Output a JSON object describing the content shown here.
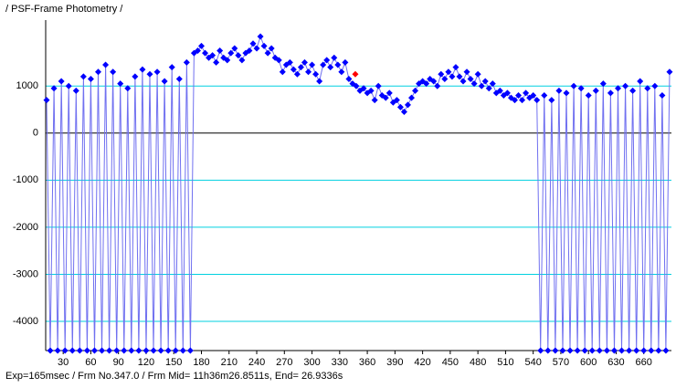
{
  "chart_data": {
    "type": "line",
    "title": "/ PSF-Frame Photometry /",
    "footer": "Exp=165msec / Frm No.347.0 / Frm Mid= 11h36m26.8511s,  End= 26.9336s",
    "xlim": [
      11,
      690
    ],
    "ylim": [
      -4620,
      2400
    ],
    "xticks": [
      30,
      60,
      90,
      120,
      150,
      180,
      210,
      240,
      270,
      300,
      330,
      360,
      390,
      420,
      450,
      480,
      510,
      540,
      570,
      600,
      630,
      660
    ],
    "yticks": [
      1000,
      0,
      -1000,
      -2000,
      -3000,
      -4000
    ],
    "grid": true,
    "grid_color": "#00d0e0",
    "zero_line_color": "#000000",
    "series": [
      {
        "color": "#0000ff",
        "line_color": "#7070f0",
        "x": [
          12,
          16,
          20,
          24,
          28,
          32,
          36,
          40,
          44,
          48,
          52,
          56,
          60,
          64,
          68,
          72,
          76,
          80,
          84,
          88,
          92,
          96,
          100,
          104,
          108,
          112,
          116,
          120,
          124,
          128,
          132,
          136,
          140,
          144,
          148,
          152,
          156,
          160,
          164,
          168,
          172,
          176,
          180,
          184,
          188,
          192,
          196,
          200,
          204,
          208,
          212,
          216,
          220,
          224,
          228,
          232,
          236,
          240,
          244,
          248,
          252,
          256,
          260,
          264,
          268,
          272,
          276,
          280,
          284,
          288,
          292,
          296,
          300,
          304,
          308,
          312,
          316,
          320,
          324,
          328,
          332,
          336,
          340,
          344,
          348,
          352,
          356,
          360,
          364,
          368,
          372,
          376,
          380,
          384,
          388,
          392,
          396,
          400,
          404,
          408,
          412,
          416,
          420,
          424,
          428,
          432,
          436,
          440,
          444,
          448,
          452,
          456,
          460,
          464,
          468,
          472,
          476,
          480,
          484,
          488,
          492,
          496,
          500,
          504,
          508,
          512,
          516,
          520,
          524,
          528,
          532,
          536,
          540,
          544,
          548,
          552,
          556,
          560,
          564,
          568,
          572,
          576,
          580,
          584,
          588,
          592,
          596,
          600,
          604,
          608,
          612,
          616,
          620,
          624,
          628,
          632,
          636,
          640,
          644,
          648,
          652,
          656,
          660,
          664,
          668,
          672,
          676,
          680,
          684,
          688
        ],
        "values": [
          700,
          -4620,
          950,
          -4620,
          1100,
          -4620,
          1000,
          -4620,
          900,
          -4620,
          1200,
          -4620,
          1150,
          -4620,
          1300,
          -4620,
          1450,
          -4620,
          1300,
          -4620,
          1050,
          -4620,
          950,
          -4620,
          1200,
          -4620,
          1350,
          -4620,
          1250,
          -4620,
          1300,
          -4620,
          1100,
          -4620,
          1400,
          -4620,
          1150,
          -4620,
          1500,
          -4620,
          1700,
          1750,
          1850,
          1700,
          1600,
          1650,
          1500,
          1750,
          1600,
          1550,
          1700,
          1800,
          1650,
          1550,
          1700,
          1750,
          1900,
          1800,
          2050,
          1850,
          1700,
          1800,
          1600,
          1550,
          1300,
          1450,
          1500,
          1350,
          1250,
          1400,
          1500,
          1300,
          1450,
          1250,
          1100,
          1450,
          1550,
          1400,
          1600,
          1450,
          1300,
          1500,
          1150,
          1050,
          1000,
          900,
          950,
          850,
          900,
          700,
          1000,
          800,
          750,
          850,
          650,
          700,
          550,
          450,
          600,
          750,
          900,
          1050,
          1100,
          1050,
          1150,
          1100,
          1000,
          1250,
          1150,
          1300,
          1200,
          1400,
          1200,
          1100,
          1300,
          1150,
          1050,
          1250,
          1000,
          1100,
          950,
          1050,
          850,
          900,
          800,
          850,
          750,
          700,
          800,
          700,
          850,
          750,
          800,
          700,
          -4620,
          800,
          -4620,
          700,
          -4620,
          900,
          -4620,
          850,
          -4620,
          1000,
          -4620,
          950,
          -4620,
          800,
          -4620,
          900,
          -4620,
          1050,
          -4620,
          850,
          -4620,
          950,
          -4620,
          1000,
          -4620,
          900,
          -4620,
          1100,
          -4620,
          950,
          -4620,
          1000,
          -4620,
          800,
          -4620,
          1300
        ]
      },
      {
        "color": "#ff0000",
        "x": [
          347
        ],
        "values": [
          1250
        ]
      }
    ]
  }
}
